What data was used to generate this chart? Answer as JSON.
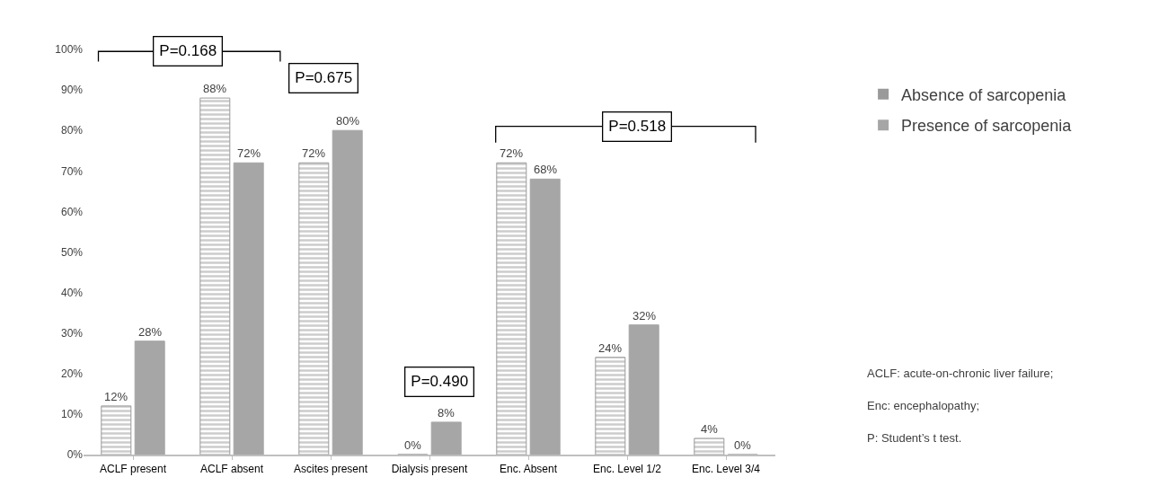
{
  "chart_data": {
    "type": "bar",
    "categories": [
      "ACLF present",
      "ACLF absent",
      "Ascites present",
      "Dialysis present",
      "Enc. Absent",
      "Enc. Level 1/2",
      "Enc. Level 3/4"
    ],
    "series": [
      {
        "name": "Absence of sarcopenia",
        "color": "#9a9a9a",
        "values": [
          12,
          88,
          72,
          0,
          72,
          24,
          4
        ],
        "value_labels": [
          "12%",
          "88%",
          "72%",
          "0%",
          "72%",
          "24%",
          "4%"
        ]
      },
      {
        "name": "Presence of sarcopenia",
        "color": "#a6a6a6",
        "values": [
          28,
          72,
          80,
          8,
          68,
          32,
          0
        ],
        "value_labels": [
          "28%",
          "72%",
          "80%",
          "8%",
          "68%",
          "32%",
          "0%"
        ]
      }
    ],
    "ylim": [
      0,
      100
    ],
    "yticks": [
      {
        "value": 0,
        "label": "0%"
      },
      {
        "value": 10,
        "label": "10%"
      },
      {
        "value": 20,
        "label": "20%"
      },
      {
        "value": 30,
        "label": "30%"
      },
      {
        "value": 40,
        "label": "40%"
      },
      {
        "value": 50,
        "label": "50%"
      },
      {
        "value": 60,
        "label": "60%"
      },
      {
        "value": 70,
        "label": "70%"
      },
      {
        "value": 80,
        "label": "80%"
      },
      {
        "value": 90,
        "label": "90%"
      },
      {
        "value": 100,
        "label": "100%"
      }
    ],
    "grid": false,
    "legend": "top right",
    "annotations": [
      "P=0.168",
      "P=0.675",
      "P=0.490",
      "P=0.518",
      "ACLF: acute-on-chronic liver failure;",
      "Enc: encephalopathy;",
      "P: Student’s t test."
    ]
  }
}
